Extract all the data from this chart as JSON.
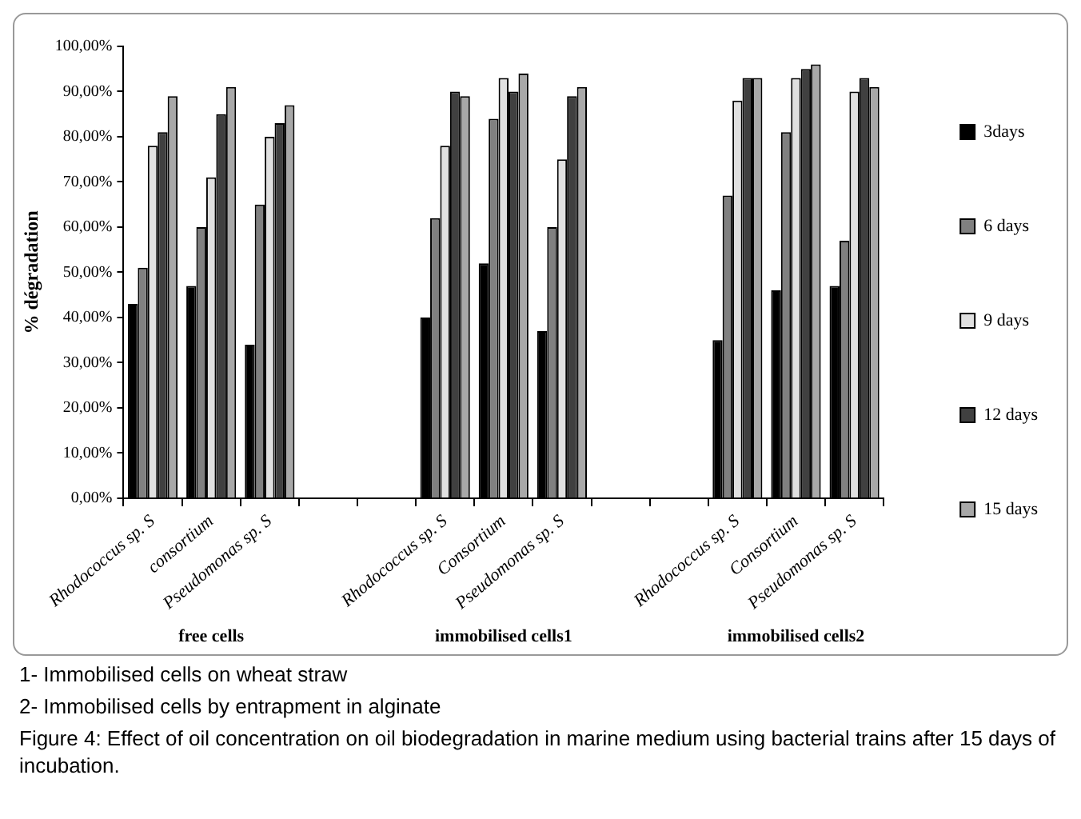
{
  "chart_data": {
    "type": "bar",
    "ylabel": "% dégradation",
    "categories": [
      "Rhodococcus sp. S",
      "consortium",
      "Pseudomonas sp. S",
      null,
      null,
      "Rhodococcus sp. S",
      "Consortium",
      "Pseudomonas sp. S",
      null,
      null,
      "Rhodococcus sp. S",
      "Consortium",
      "Pseudomonas sp. S"
    ],
    "series": [
      {
        "name": "3days",
        "color": "#000000",
        "values": [
          43,
          47,
          34,
          null,
          null,
          40,
          52,
          37,
          null,
          null,
          35,
          46,
          47
        ]
      },
      {
        "name": "6 days",
        "color": "#808080",
        "values": [
          51,
          60,
          65,
          null,
          null,
          62,
          84,
          60,
          null,
          null,
          67,
          81,
          57
        ]
      },
      {
        "name": "9 days",
        "color": "#e0e0e0",
        "values": [
          78,
          71,
          80,
          null,
          null,
          78,
          93,
          75,
          null,
          null,
          88,
          93,
          90
        ]
      },
      {
        "name": "12 days",
        "color": "#404040",
        "values": [
          81,
          85,
          83,
          null,
          null,
          90,
          90,
          89,
          null,
          null,
          93,
          95,
          93
        ]
      },
      {
        "name": "15 days",
        "color": "#a8a8a8",
        "values": [
          89,
          91,
          87,
          null,
          null,
          89,
          94,
          91,
          null,
          null,
          93,
          96,
          91
        ]
      }
    ],
    "ylim": [
      0,
      100
    ],
    "yticks": [
      {
        "value": 0,
        "label": "0,00%"
      },
      {
        "value": 10,
        "label": "10,00%"
      },
      {
        "value": 20,
        "label": "20,00%"
      },
      {
        "value": 30,
        "label": "30,00%"
      },
      {
        "value": 40,
        "label": "40,00%"
      },
      {
        "value": 50,
        "label": "50,00%"
      },
      {
        "value": 60,
        "label": "60,00%"
      },
      {
        "value": 70,
        "label": "70,00%"
      },
      {
        "value": 80,
        "label": "80,00%"
      },
      {
        "value": 90,
        "label": "90,00%"
      },
      {
        "value": 100,
        "label": "100,00%"
      }
    ],
    "grid": false,
    "legend": "right",
    "annotations": [
      "free cells",
      "immobilised cells1",
      "immobilised cells2",
      "1- Immobilised cells on wheat straw",
      "2- Immobilised cells by entrapment in alginate",
      "Figure 4: Effect of oil concentration on oil biodegradation in marine medium using bacterial trains  after 15 days of incubation."
    ]
  }
}
